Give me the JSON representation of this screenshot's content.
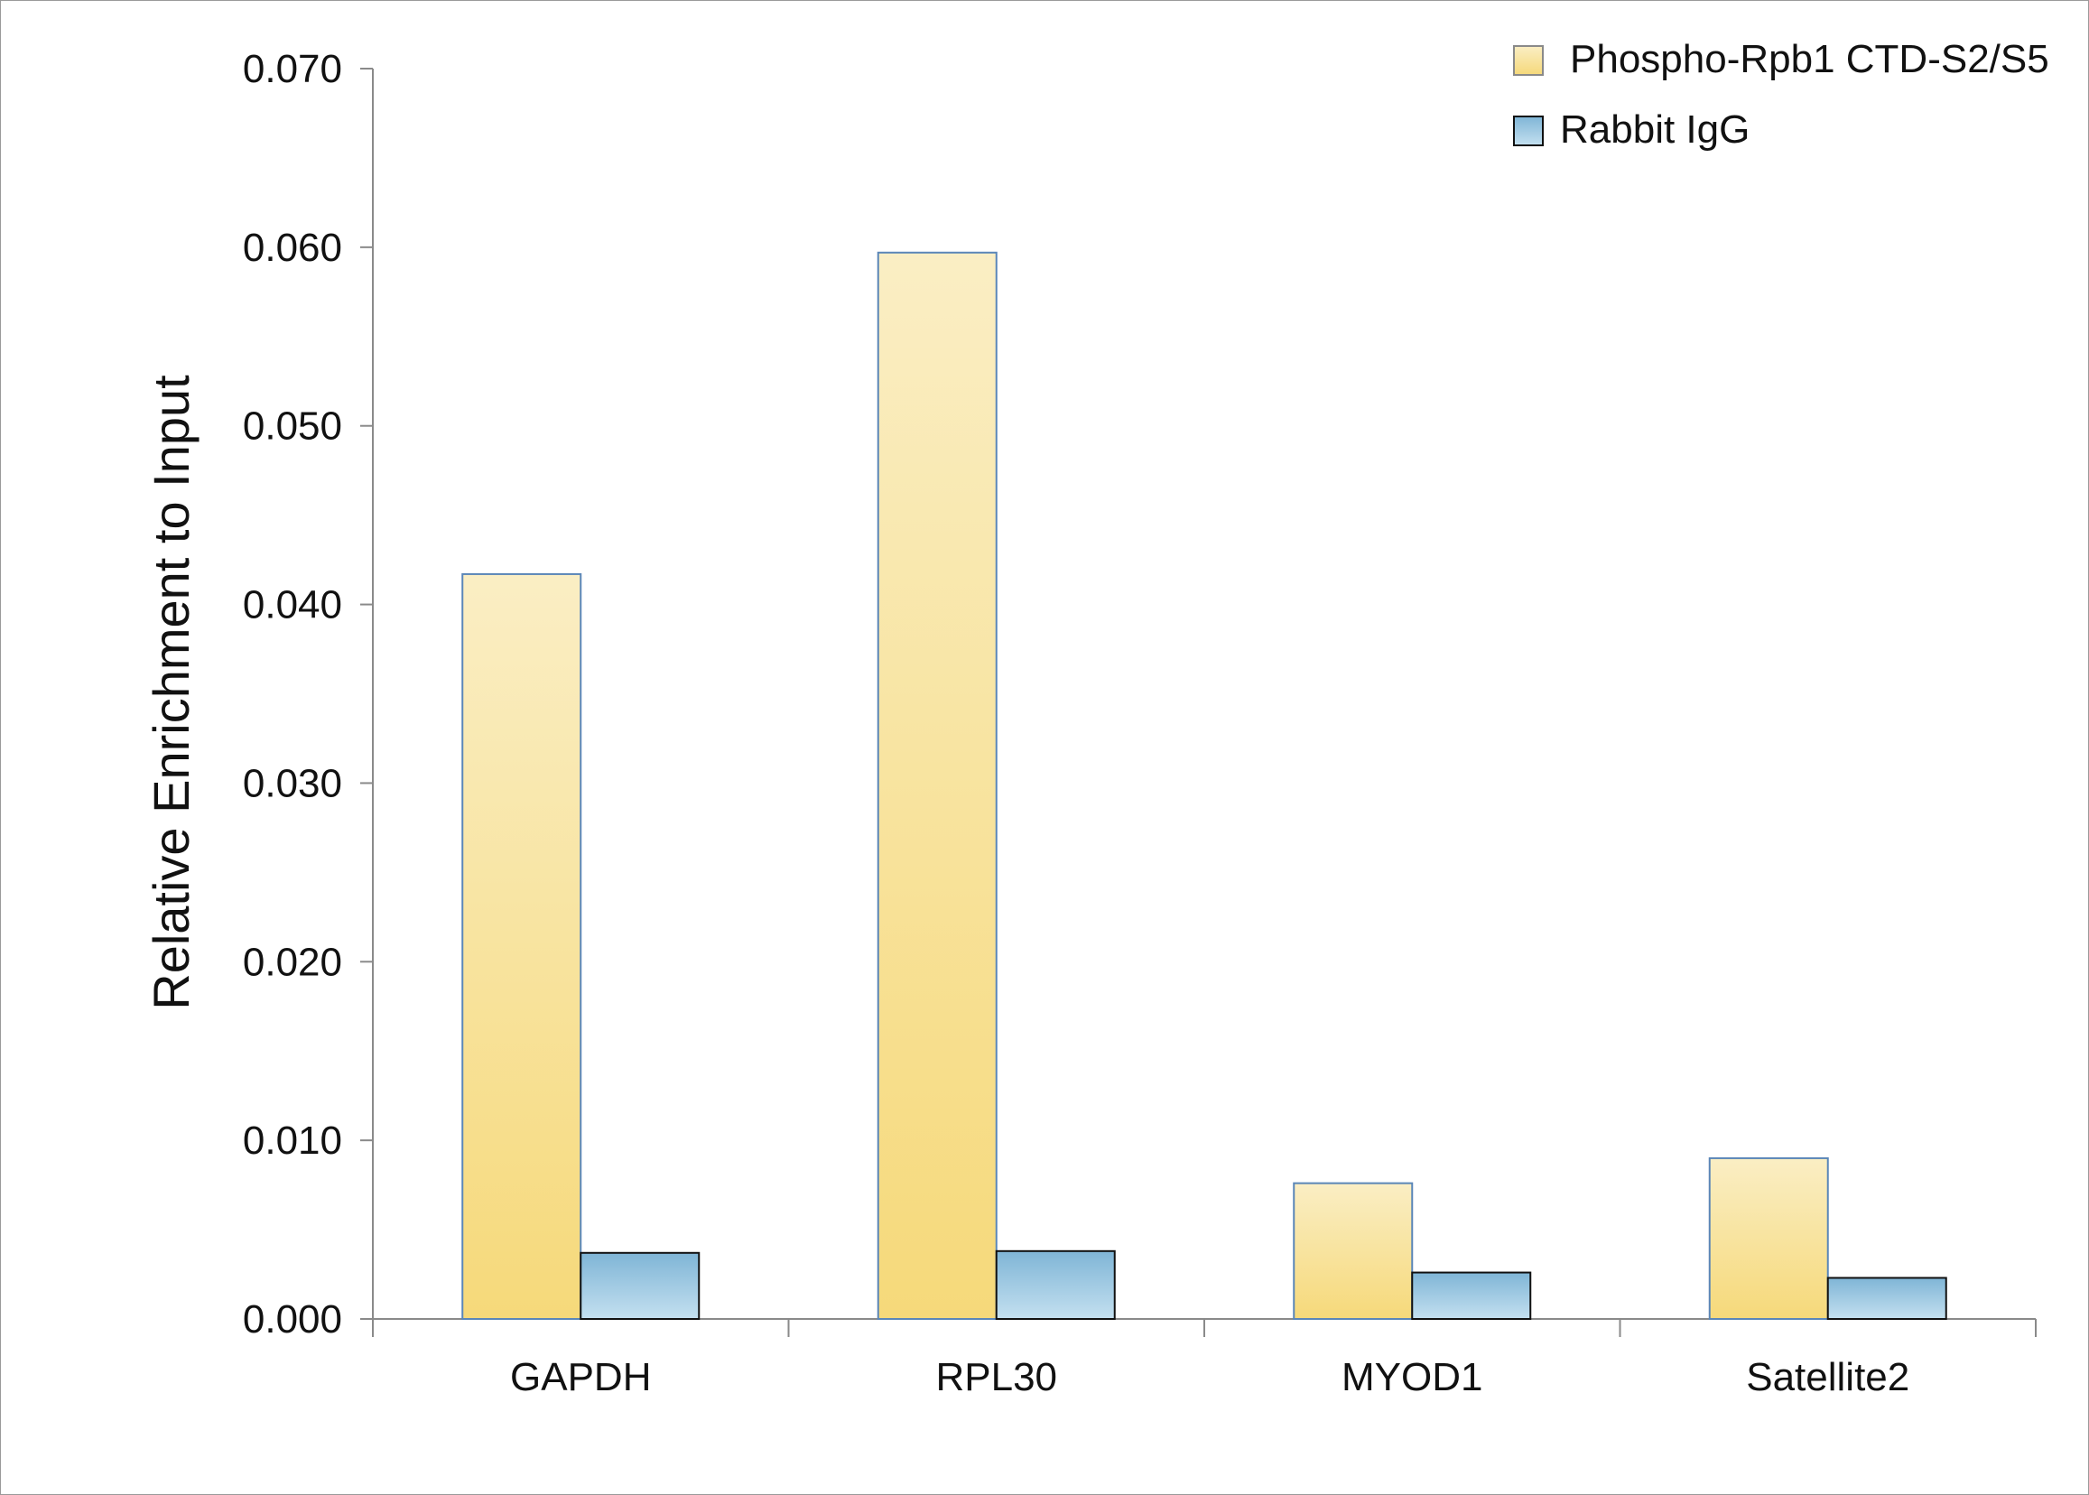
{
  "chart_data": {
    "type": "bar",
    "title": "",
    "xlabel": "",
    "ylabel": "Relative Enrichment to Input",
    "ylim": [
      0,
      0.07
    ],
    "yticks": [
      "0.000",
      "0.010",
      "0.020",
      "0.030",
      "0.040",
      "0.050",
      "0.060",
      "0.070"
    ],
    "grid": false,
    "legend_position": "top-right",
    "categories": [
      "GAPDH",
      "RPL30",
      "MYOD1",
      "Satellite2"
    ],
    "series": [
      {
        "name": "Phospho-Rpb1 CTD-S2/S5",
        "values": [
          0.0417,
          0.0597,
          0.0076,
          0.009
        ],
        "color": "#f6d97a",
        "color_light": "#faeec4",
        "stroke": "#5a86b8"
      },
      {
        "name": "Rabbit IgG",
        "values": [
          0.0037,
          0.0038,
          0.0026,
          0.0023
        ],
        "color": "#7fb5d6",
        "color_light": "#c4e0f0",
        "stroke": "#111111"
      }
    ]
  }
}
